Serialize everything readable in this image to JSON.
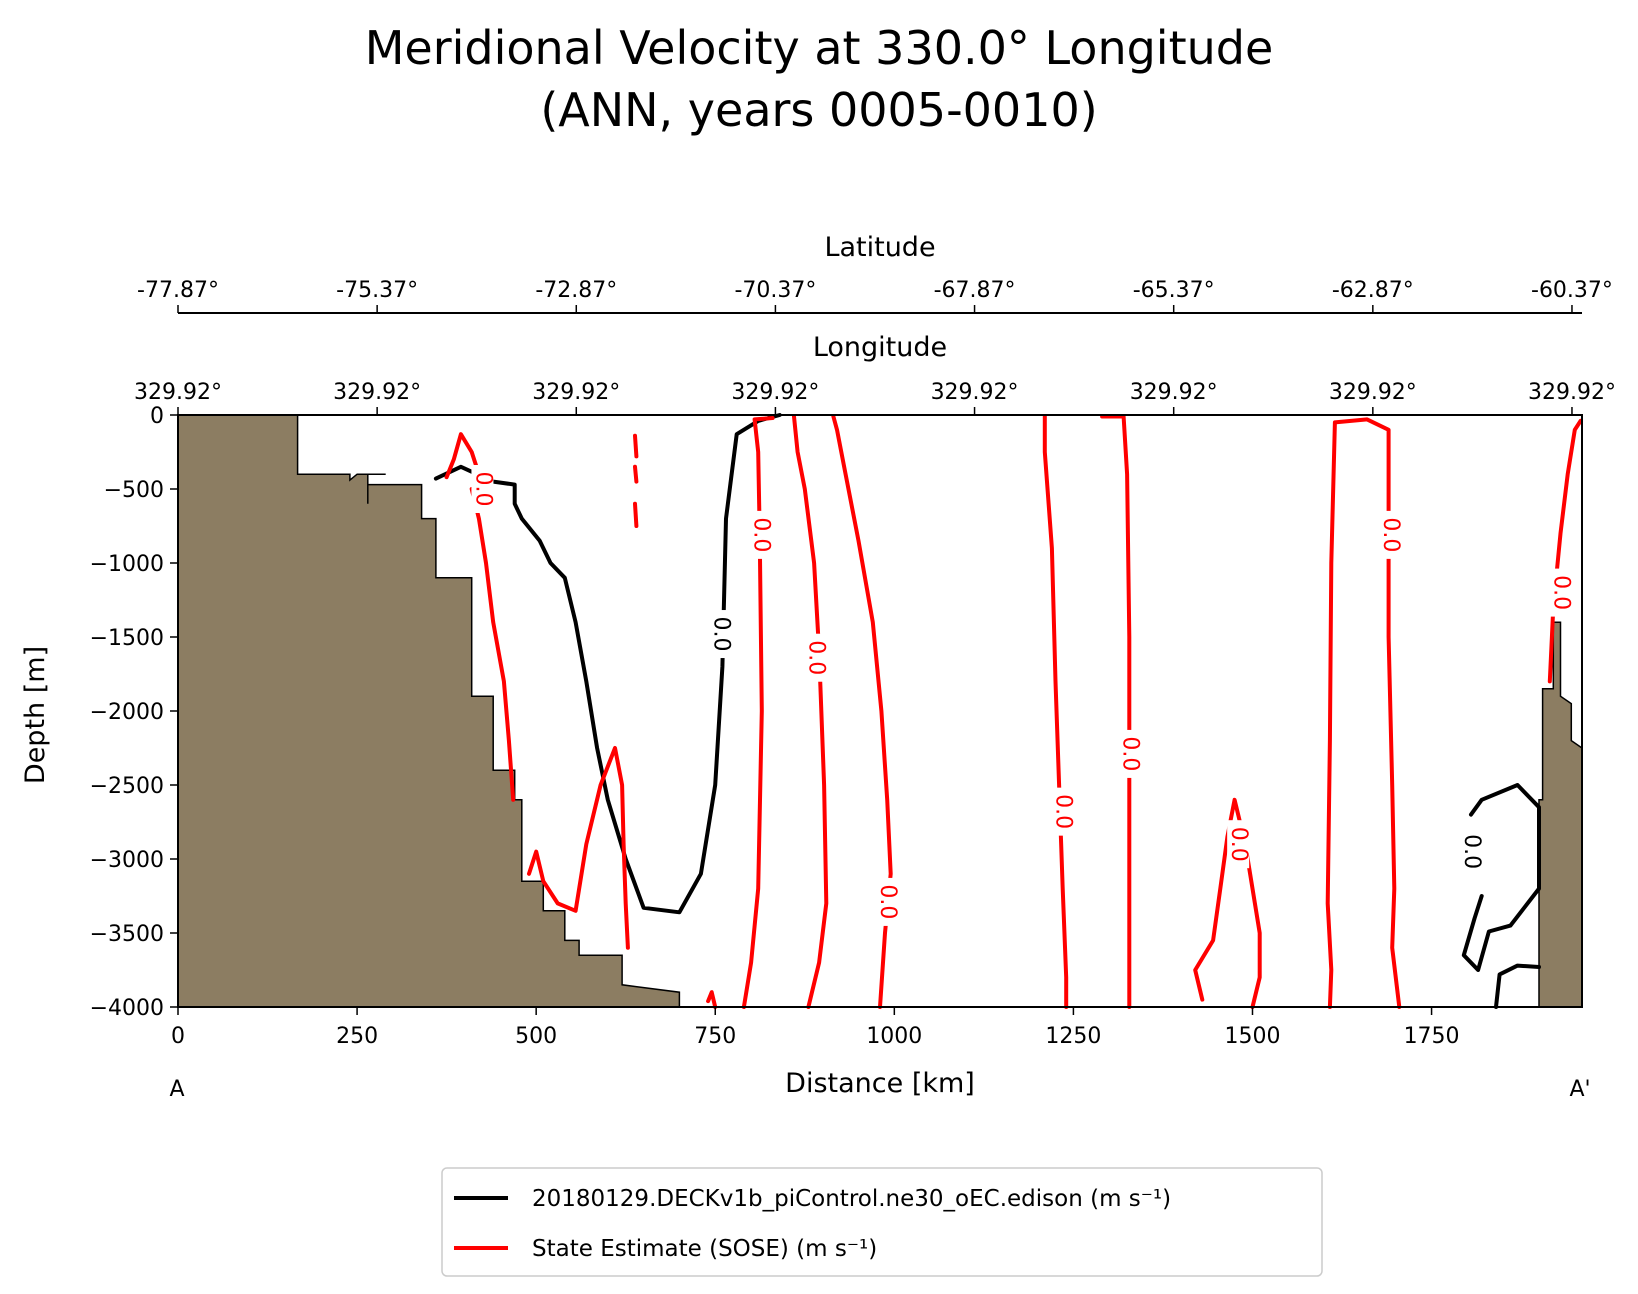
{
  "chart_data": {
    "type": "line",
    "title_line1": "Meridional Velocity at 330.0° Longitude",
    "title_line2": "(ANN, years 0005-0010)",
    "xlabel": "Distance [km]",
    "ylabel": "Depth [m]",
    "xlim": [
      0,
      1960
    ],
    "ylim": [
      -4000,
      0
    ],
    "x_ticks": [
      0,
      250,
      500,
      750,
      1000,
      1250,
      1500,
      1750
    ],
    "x_tick_labels": [
      "0",
      "250",
      "500",
      "750",
      "1000",
      "1250",
      "1500",
      "1750"
    ],
    "y_ticks": [
      0,
      -500,
      -1000,
      -1500,
      -2000,
      -2500,
      -3000,
      -3500,
      -4000
    ],
    "y_tick_labels": [
      "0",
      "−500",
      "−1000",
      "−1500",
      "−2000",
      "−2500",
      "−3000",
      "−3500",
      "−4000"
    ],
    "endpoint_labels": {
      "start": "A",
      "end": "A'"
    },
    "latitude_axis": {
      "label": "Latitude",
      "ticks_km": [
        0,
        278,
        556,
        834,
        1112,
        1390,
        1668,
        1946
      ],
      "tick_labels": [
        "-77.87°",
        "-75.37°",
        "-72.87°",
        "-70.37°",
        "-67.87°",
        "-65.37°",
        "-62.87°",
        "-60.37°"
      ]
    },
    "longitude_axis": {
      "label": "Longitude",
      "ticks_km": [
        0,
        278,
        556,
        834,
        1112,
        1390,
        1668,
        1946
      ],
      "tick_labels": [
        "329.92°",
        "329.92°",
        "329.92°",
        "329.92°",
        "329.92°",
        "329.92°",
        "329.92°",
        "329.92°"
      ]
    },
    "contour_level_label": "0.0",
    "series": [
      {
        "name": "20180129.DECKv1b_piControl.ne30_oEC.edison (m s⁻¹)",
        "color": "#000000",
        "contours": [
          [
            [
              360,
              -430
            ],
            [
              395,
              -350
            ],
            [
              440,
              -450
            ],
            [
              470,
              -470
            ],
            [
              470,
              -600
            ],
            [
              480,
              -700
            ],
            [
              505,
              -850
            ],
            [
              520,
              -1000
            ],
            [
              540,
              -1100
            ],
            [
              555,
              -1400
            ],
            [
              570,
              -1800
            ],
            [
              585,
              -2250
            ],
            [
              600,
              -2600
            ],
            [
              625,
              -3000
            ],
            [
              650,
              -3330
            ],
            [
              700,
              -3360
            ],
            [
              730,
              -3100
            ],
            [
              750,
              -2500
            ],
            [
              760,
              -1700
            ],
            [
              765,
              -700
            ],
            [
              780,
              -130
            ],
            [
              810,
              -40
            ],
            [
              840,
              0
            ]
          ],
          [
            [
              1805,
              -2700
            ],
            [
              1820,
              -2600
            ],
            [
              1870,
              -2500
            ],
            [
              1900,
              -2650
            ],
            [
              1900,
              -3200
            ],
            [
              1860,
              -3450
            ],
            [
              1830,
              -3490
            ],
            [
              1815,
              -3750
            ],
            [
              1795,
              -3650
            ],
            [
              1810,
              -3400
            ],
            [
              1820,
              -3250
            ]
          ],
          [
            [
              1840,
              -4000
            ],
            [
              1845,
              -3780
            ],
            [
              1870,
              -3720
            ],
            [
              1900,
              -3730
            ]
          ]
        ]
      },
      {
        "name": "State Estimate (SOSE) (m s⁻¹)",
        "color": "#ff0000",
        "contours": [
          [
            [
              375,
              -420
            ],
            [
              385,
              -300
            ],
            [
              395,
              -130
            ],
            [
              410,
              -250
            ],
            [
              420,
              -400
            ]
          ],
          [
            [
              410,
              -500
            ],
            [
              420,
              -700
            ],
            [
              430,
              -1000
            ],
            [
              440,
              -1400
            ],
            [
              455,
              -1800
            ],
            [
              462,
              -2200
            ],
            [
              468,
              -2600
            ]
          ],
          [
            [
              638,
              -140
            ],
            [
              640,
              -280
            ]
          ],
          [
            [
              638,
              -350
            ],
            [
              640,
              -450
            ]
          ],
          [
            [
              638,
              -600
            ],
            [
              640,
              -750
            ]
          ],
          [
            [
              490,
              -3100
            ],
            [
              500,
              -2950
            ],
            [
              510,
              -3150
            ],
            [
              530,
              -3300
            ],
            [
              555,
              -3350
            ],
            [
              570,
              -2900
            ],
            [
              590,
              -2500
            ],
            [
              610,
              -2250
            ],
            [
              620,
              -2500
            ],
            [
              622,
              -2900
            ],
            [
              625,
              -3300
            ],
            [
              628,
              -3600
            ]
          ],
          [
            [
              750,
              -4000
            ],
            [
              745,
              -3900
            ],
            [
              740,
              -3960
            ]
          ],
          [
            [
              790,
              -4000
            ],
            [
              800,
              -3700
            ],
            [
              810,
              -3200
            ],
            [
              815,
              -2000
            ],
            [
              812,
              -800
            ],
            [
              810,
              -250
            ],
            [
              805,
              -30
            ],
            [
              830,
              -20
            ]
          ],
          [
            [
              860,
              -10
            ],
            [
              865,
              -250
            ],
            [
              875,
              -500
            ],
            [
              888,
              -1000
            ],
            [
              895,
              -1600
            ],
            [
              902,
              -2500
            ],
            [
              905,
              -3300
            ],
            [
              895,
              -3700
            ],
            [
              880,
              -4000
            ]
          ],
          [
            [
              915,
              -10
            ],
            [
              920,
              -100
            ],
            [
              932,
              -400
            ],
            [
              950,
              -850
            ],
            [
              970,
              -1400
            ],
            [
              982,
              -2000
            ],
            [
              990,
              -2600
            ],
            [
              995,
              -3100
            ],
            [
              987,
              -3500
            ],
            [
              980,
              -4000
            ]
          ],
          [
            [
              1210,
              -10
            ],
            [
              1210,
              -250
            ],
            [
              1220,
              -900
            ],
            [
              1225,
              -1800
            ],
            [
              1230,
              -2500
            ],
            [
              1235,
              -3200
            ],
            [
              1240,
              -3800
            ],
            [
              1240,
              -4000
            ]
          ],
          [
            [
              1290,
              -10
            ],
            [
              1320,
              -10
            ],
            [
              1325,
              -400
            ],
            [
              1328,
              -1500
            ],
            [
              1328,
              -2600
            ],
            [
              1328,
              -3600
            ],
            [
              1328,
              -4000
            ]
          ],
          [
            [
              1430,
              -3950
            ],
            [
              1420,
              -3750
            ],
            [
              1445,
              -3550
            ],
            [
              1455,
              -3200
            ],
            [
              1465,
              -2850
            ],
            [
              1475,
              -2600
            ],
            [
              1490,
              -2900
            ],
            [
              1500,
              -3200
            ],
            [
              1510,
              -3500
            ],
            [
              1510,
              -3800
            ],
            [
              1500,
              -4000
            ]
          ],
          [
            [
              1608,
              -4000
            ],
            [
              1610,
              -3750
            ],
            [
              1605,
              -3300
            ],
            [
              1608,
              -2200
            ],
            [
              1610,
              -1000
            ],
            [
              1615,
              -50
            ],
            [
              1660,
              -30
            ],
            [
              1690,
              -100
            ],
            [
              1690,
              -500
            ],
            [
              1690,
              -1500
            ],
            [
              1695,
              -2500
            ],
            [
              1698,
              -3200
            ],
            [
              1695,
              -3600
            ],
            [
              1705,
              -4000
            ]
          ],
          [
            [
              1915,
              -1800
            ],
            [
              1920,
              -1300
            ],
            [
              1930,
              -800
            ],
            [
              1940,
              -400
            ],
            [
              1950,
              -100
            ],
            [
              1958,
              -40
            ]
          ]
        ]
      }
    ],
    "bathymetry": {
      "color": "#8c7d62",
      "outline": [
        [
          0,
          0
        ],
        [
          167,
          0
        ],
        [
          167,
          -400
        ],
        [
          240,
          -400
        ],
        [
          240,
          -440
        ],
        [
          250,
          -400
        ],
        [
          290,
          -400
        ],
        [
          265,
          -400
        ],
        [
          265,
          -600
        ],
        [
          265,
          -470
        ],
        [
          340,
          -470
        ],
        [
          340,
          -700
        ],
        [
          360,
          -700
        ],
        [
          360,
          -1100
        ],
        [
          410,
          -1100
        ],
        [
          410,
          -1900
        ],
        [
          440,
          -1900
        ],
        [
          440,
          -2400
        ],
        [
          470,
          -2400
        ],
        [
          470,
          -2600
        ],
        [
          480,
          -2600
        ],
        [
          480,
          -3150
        ],
        [
          510,
          -3150
        ],
        [
          510,
          -3350
        ],
        [
          540,
          -3350
        ],
        [
          540,
          -3550
        ],
        [
          560,
          -3550
        ],
        [
          560,
          -3650
        ],
        [
          620,
          -3650
        ],
        [
          620,
          -3850
        ],
        [
          700,
          -3900
        ],
        [
          700,
          -4000
        ],
        [
          0,
          -4000
        ]
      ],
      "outline_right": [
        [
          1960,
          -4000
        ],
        [
          1960,
          -2250
        ],
        [
          1945,
          -2200
        ],
        [
          1945,
          -1950
        ],
        [
          1930,
          -1900
        ],
        [
          1930,
          -1400
        ],
        [
          1920,
          -1400
        ],
        [
          1920,
          -1850
        ],
        [
          1905,
          -1850
        ],
        [
          1905,
          -2600
        ],
        [
          1900,
          -2600
        ],
        [
          1900,
          -4000
        ]
      ]
    }
  },
  "legend": {
    "placement": "bottom-center"
  }
}
